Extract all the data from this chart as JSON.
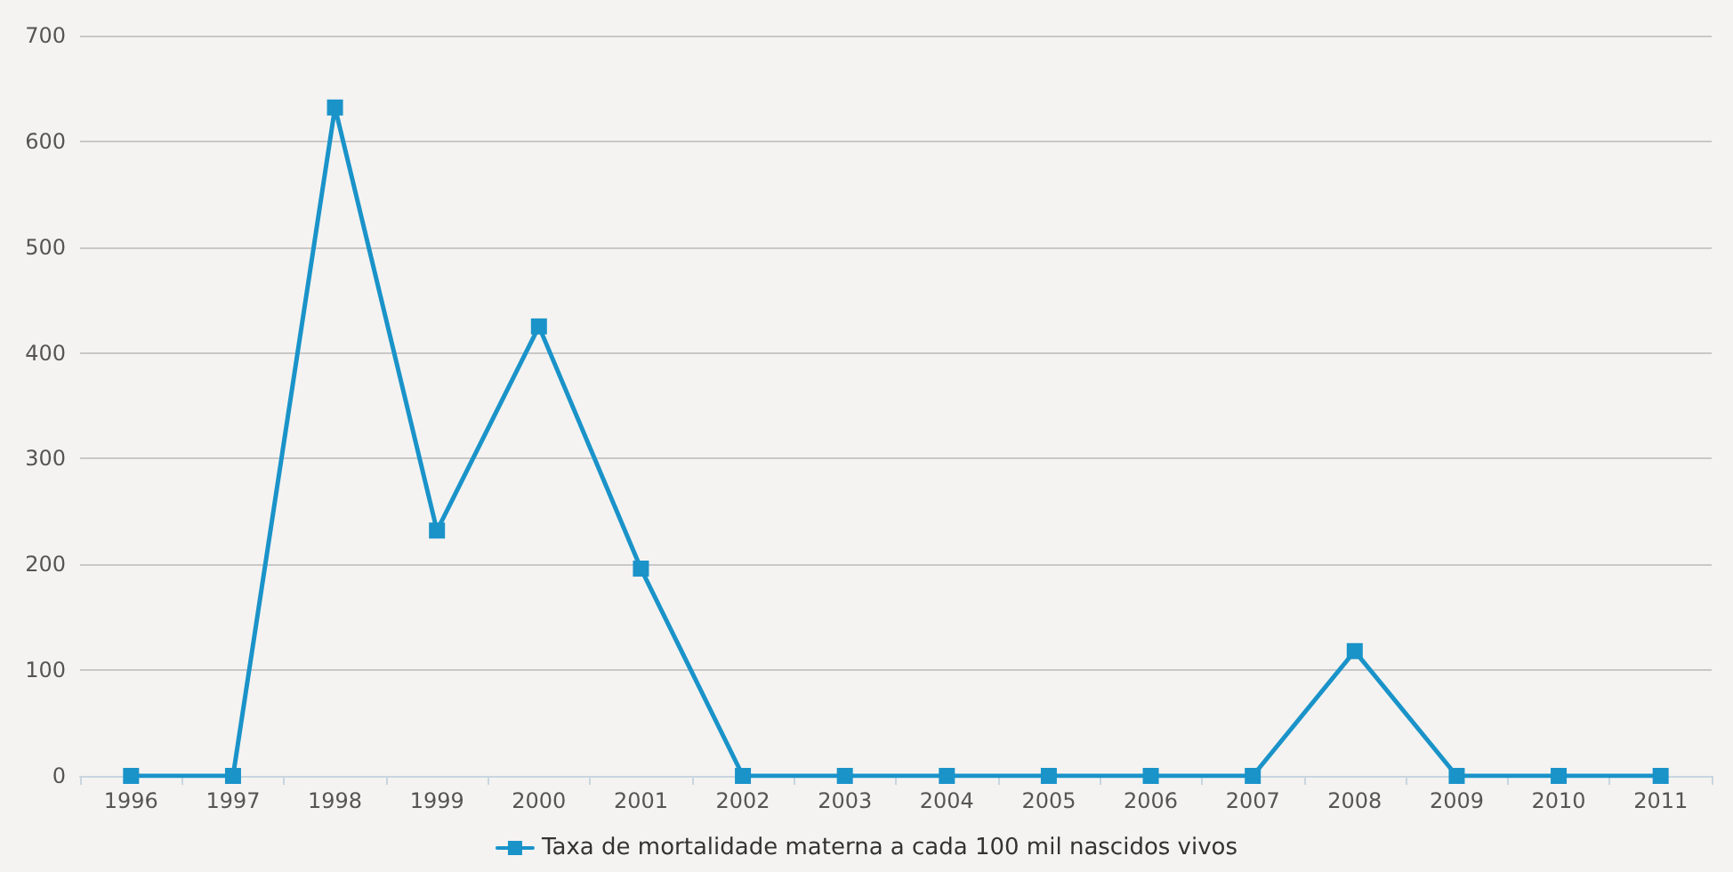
{
  "chart_data": {
    "type": "line",
    "categories": [
      "1996",
      "1997",
      "1998",
      "1999",
      "2000",
      "2001",
      "2002",
      "2003",
      "2004",
      "2005",
      "2006",
      "2007",
      "2008",
      "2009",
      "2010",
      "2011"
    ],
    "series": [
      {
        "name": "Taxa de mortalidade materna a cada 100 mil nascidos vivos",
        "color": "#1a93c9",
        "values": [
          0,
          0,
          632,
          232,
          425,
          196,
          0,
          0,
          0,
          0,
          0,
          0,
          118,
          0,
          0,
          0
        ]
      }
    ],
    "ylim": [
      0,
      700
    ],
    "yticks": [
      0,
      100,
      200,
      300,
      400,
      500,
      600,
      700
    ],
    "grid": "y",
    "legend": "bottom",
    "marker": "square",
    "line_style": "solid"
  }
}
